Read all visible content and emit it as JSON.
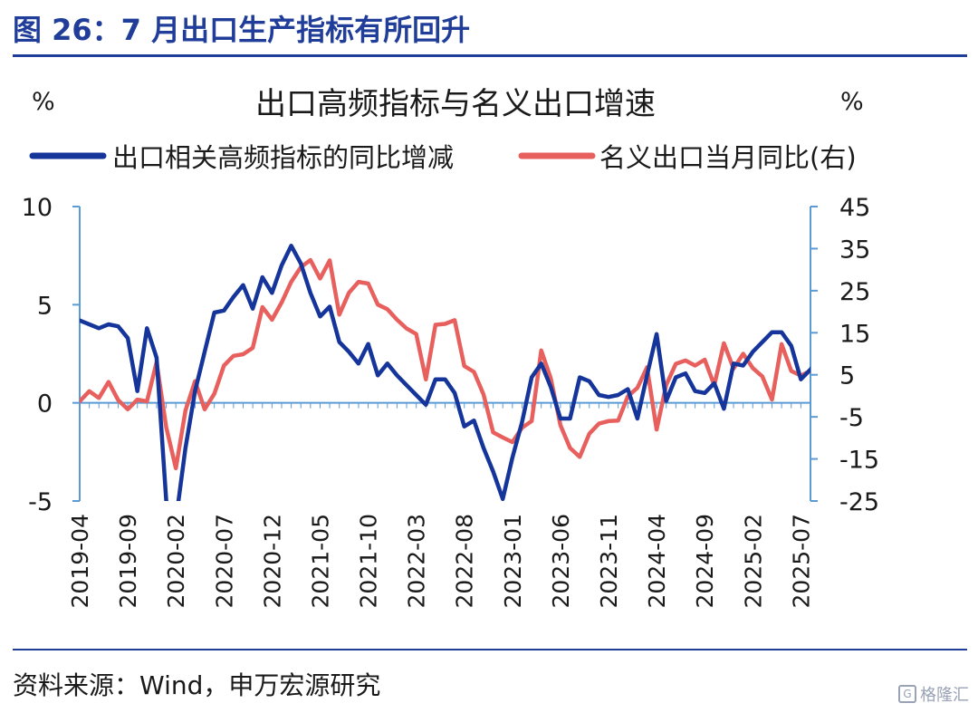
{
  "figure_title": "图 26：7 月出口生产指标有所回升",
  "source_note": "资料来源：Wind，申万宏源研究",
  "watermark": {
    "text": "格隆汇",
    "icon": "G"
  },
  "colors": {
    "series1": "#15359b",
    "series2": "#e8605e",
    "axis": "#5b9bd5",
    "title": "#1f3d99"
  },
  "chart_data": {
    "type": "line",
    "title": "出口高频指标与名义出口增速",
    "left_axis_unit": "%",
    "right_axis_unit": "%",
    "legend": [
      "出口相关高频指标的同比增减",
      "名义出口当月同比(右)"
    ],
    "legend_position": "top",
    "grid": false,
    "x_start": "2019-04",
    "x_tick_labels": [
      "2019-04",
      "2019-09",
      "2020-02",
      "2020-07",
      "2020-12",
      "2021-05",
      "2021-10",
      "2022-03",
      "2022-08",
      "2023-01",
      "2023-06",
      "2023-11",
      "2024-04",
      "2024-09",
      "2025-02",
      "2025-07"
    ],
    "y_left": {
      "ticks": [
        10,
        5,
        0,
        -5
      ],
      "range": [
        -5,
        10
      ]
    },
    "y_right": {
      "ticks": [
        45,
        35,
        25,
        15,
        5,
        -5,
        -15,
        -25
      ],
      "range": [
        -25,
        45
      ]
    },
    "series": [
      {
        "name": "出口相关高频指标的同比增减",
        "axis": "left",
        "values": [
          4.2,
          4.0,
          3.8,
          4.0,
          3.9,
          3.3,
          0.6,
          3.8,
          2.3,
          -5.0,
          -6.0,
          -2.3,
          0.6,
          2.6,
          4.6,
          4.7,
          5.4,
          6.0,
          4.8,
          6.4,
          5.6,
          7.0,
          8.0,
          7.1,
          5.6,
          4.4,
          4.9,
          3.1,
          2.6,
          2.0,
          3.0,
          1.4,
          2.0,
          1.4,
          0.9,
          0.4,
          -0.1,
          1.2,
          1.2,
          0.5,
          -1.2,
          -0.9,
          -2.3,
          -3.5,
          -4.9,
          -2.8,
          -1.0,
          1.3,
          2.0,
          0.8,
          -0.8,
          -0.8,
          1.3,
          1.1,
          0.4,
          0.3,
          0.4,
          0.7,
          -0.8,
          1.4,
          3.5,
          0.1,
          1.3,
          1.5,
          0.6,
          0.5,
          1.0,
          -0.3,
          2.0,
          1.9,
          2.6,
          3.1,
          3.6,
          3.6,
          2.9,
          1.2,
          1.7,
          2.3
        ]
      },
      {
        "name": "名义出口当月同比(右)",
        "axis": "left_scale_right",
        "values": [
          -1.3,
          1.1,
          -0.5,
          3.3,
          -1.0,
          -3.2,
          -0.9,
          -1.3,
          8.0,
          -7.5,
          -17.2,
          -3.5,
          3.5,
          -3.2,
          0.5,
          7.2,
          9.5,
          9.9,
          11.4,
          21.1,
          18.1,
          22.2,
          27.1,
          30.6,
          32.3,
          27.9,
          32.2,
          19.3,
          24.5,
          27.1,
          26.7,
          21.7,
          20.6,
          18.1,
          16.0,
          14.7,
          3.9,
          16.9,
          17.1,
          18.0,
          7.1,
          5.7,
          0.3,
          -8.7,
          -9.9,
          -11.0,
          -7.6,
          -6.0,
          10.8,
          4.1,
          -7.0,
          -12.4,
          -14.5,
          -9.0,
          -6.6,
          -6.0,
          -5.9,
          -0.1,
          1.9,
          6.8,
          -8.0,
          2.6,
          7.6,
          8.4,
          7.2,
          8.6,
          2.5,
          12.5,
          6.5,
          10.0,
          6.6,
          4.6,
          -0.9,
          12.3,
          5.9,
          4.8,
          5.9
        ]
      }
    ]
  }
}
